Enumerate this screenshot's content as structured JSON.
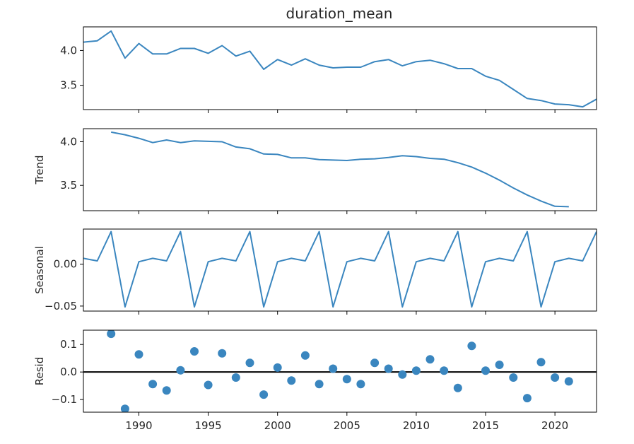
{
  "chart_data": {
    "type": "line",
    "title": "duration_mean",
    "x": [
      1986,
      1987,
      1988,
      1989,
      1990,
      1991,
      1992,
      1993,
      1994,
      1995,
      1996,
      1997,
      1998,
      1999,
      2000,
      2001,
      2002,
      2003,
      2004,
      2005,
      2006,
      2007,
      2008,
      2009,
      2010,
      2011,
      2012,
      2013,
      2014,
      2015,
      2016,
      2017,
      2018,
      2019,
      2020,
      2021,
      2022,
      2023
    ],
    "xlim": [
      1986,
      2023
    ],
    "xticks": [
      1990,
      1995,
      2000,
      2005,
      2010,
      2015,
      2020
    ],
    "xtick_labels": [
      "1990",
      "1995",
      "2000",
      "2005",
      "2010",
      "2015",
      "2020"
    ],
    "shared_x": true,
    "grid": false,
    "panels": [
      {
        "ylabel": "",
        "type": "line",
        "ylim": [
          3.15,
          4.34
        ],
        "yticks": [
          3.5,
          4.0
        ],
        "ytick_labels": [
          "3.5",
          "4.0"
        ],
        "values": [
          4.12,
          4.14,
          4.28,
          3.89,
          4.1,
          3.95,
          3.95,
          4.03,
          4.03,
          3.96,
          4.07,
          3.92,
          3.99,
          3.73,
          3.87,
          3.79,
          3.88,
          3.79,
          3.75,
          3.76,
          3.76,
          3.84,
          3.87,
          3.78,
          3.84,
          3.86,
          3.81,
          3.74,
          3.74,
          3.63,
          3.57,
          3.44,
          3.31,
          3.28,
          3.23,
          3.22,
          3.19,
          3.3
        ]
      },
      {
        "ylabel": "Trend",
        "type": "line",
        "ylim": [
          3.21,
          4.15
        ],
        "yticks": [
          3.5,
          4.0
        ],
        "ytick_labels": [
          "3.5",
          "4.0"
        ],
        "values": [
          null,
          null,
          4.11,
          4.08,
          4.04,
          3.99,
          4.02,
          3.99,
          4.01,
          4.005,
          4.0,
          3.94,
          3.92,
          3.86,
          3.855,
          3.815,
          3.815,
          3.795,
          3.79,
          3.785,
          3.8,
          3.805,
          3.82,
          3.84,
          3.83,
          3.81,
          3.8,
          3.76,
          3.71,
          3.64,
          3.56,
          3.47,
          3.39,
          3.32,
          3.26,
          3.255,
          null,
          null
        ]
      },
      {
        "ylabel": "Seasonal",
        "type": "line",
        "ylim": [
          -0.056,
          0.042
        ],
        "yticks": [
          -0.05,
          0.0
        ],
        "ytick_labels": [
          "−0.05",
          "0.00"
        ],
        "values": [
          0.007,
          0.004,
          0.039,
          -0.051,
          0.003,
          0.007,
          0.004,
          0.039,
          -0.051,
          0.003,
          0.007,
          0.004,
          0.039,
          -0.051,
          0.003,
          0.007,
          0.004,
          0.039,
          -0.051,
          0.003,
          0.007,
          0.004,
          0.039,
          -0.051,
          0.003,
          0.007,
          0.004,
          0.039,
          -0.051,
          0.003,
          0.007,
          0.004,
          0.039,
          -0.051,
          0.003,
          0.007,
          0.004,
          0.039
        ]
      },
      {
        "ylabel": "Resid",
        "type": "scatter",
        "ylim": [
          -0.146,
          0.152
        ],
        "yticks": [
          -0.1,
          0.0,
          0.1
        ],
        "ytick_labels": [
          "−0.1",
          "0.0",
          "0.1"
        ],
        "baseline": 0.0,
        "values": [
          null,
          null,
          0.139,
          -0.134,
          0.064,
          -0.044,
          -0.067,
          0.006,
          0.075,
          -0.047,
          0.068,
          -0.02,
          0.033,
          -0.082,
          0.016,
          -0.031,
          0.06,
          -0.044,
          0.012,
          -0.026,
          -0.044,
          0.033,
          0.012,
          -0.009,
          0.005,
          0.046,
          0.005,
          -0.058,
          0.095,
          0.005,
          0.026,
          -0.02,
          -0.095,
          0.036,
          -0.02,
          -0.034,
          null,
          null
        ]
      }
    ]
  }
}
